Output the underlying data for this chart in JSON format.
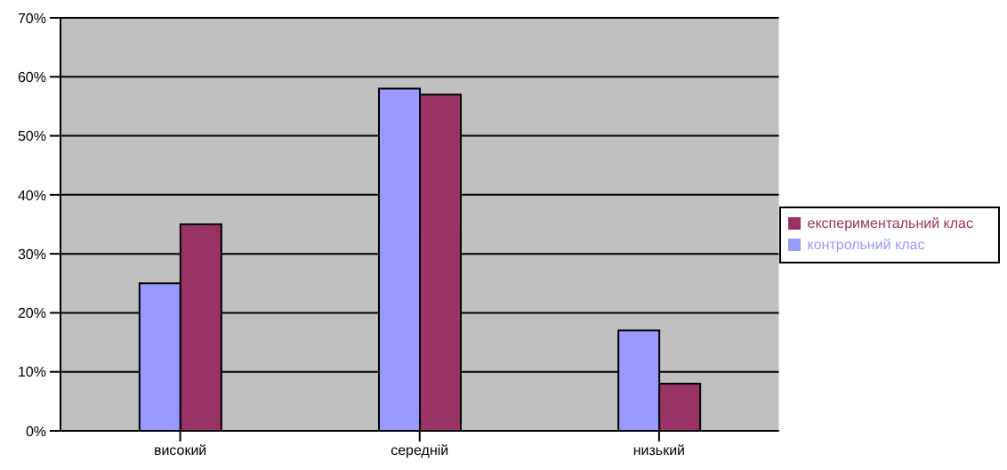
{
  "chart_data": {
    "type": "bar",
    "categories": [
      "високий",
      "середній",
      "низький"
    ],
    "series": [
      {
        "name": "контрольний клас",
        "color": "#9999ff",
        "values": [
          25,
          58,
          17
        ]
      },
      {
        "name": "експериментальний клас",
        "color": "#993366",
        "values": [
          35,
          57,
          8
        ]
      }
    ],
    "ylim": [
      0,
      70
    ],
    "yticks": [
      {
        "value": 0,
        "label": "0%"
      },
      {
        "value": 10,
        "label": "10%"
      },
      {
        "value": 20,
        "label": "20%"
      },
      {
        "value": 30,
        "label": "30%"
      },
      {
        "value": 40,
        "label": "40%"
      },
      {
        "value": 50,
        "label": "50%"
      },
      {
        "value": 60,
        "label": "60%"
      },
      {
        "value": 70,
        "label": "70%"
      }
    ],
    "grid": "y",
    "legend": "right"
  }
}
